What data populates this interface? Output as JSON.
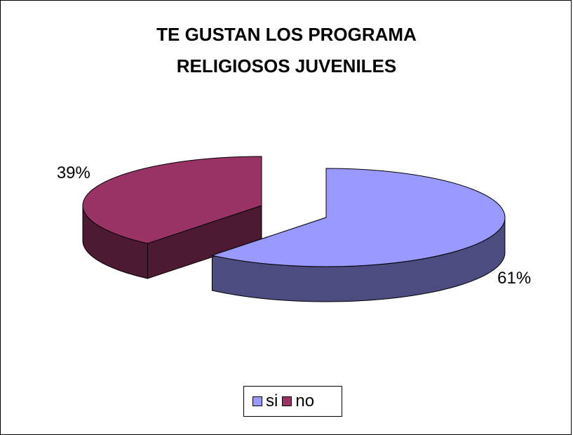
{
  "chart_data": {
    "type": "pie",
    "title_lines": [
      "TE GUSTAN LOS PROGRAMA",
      "RELIGIOSOS JUVENILES"
    ],
    "style": "3d-exploded",
    "slices": [
      {
        "name": "si",
        "value": 61,
        "label": "61%",
        "color": "#9999ff",
        "side_color": "#4c4c80"
      },
      {
        "name": "no",
        "value": 39,
        "label": "39%",
        "color": "#993366",
        "side_color": "#4d1933"
      }
    ],
    "legend": {
      "placement": "bottom",
      "entries": [
        "si",
        "no"
      ]
    }
  }
}
